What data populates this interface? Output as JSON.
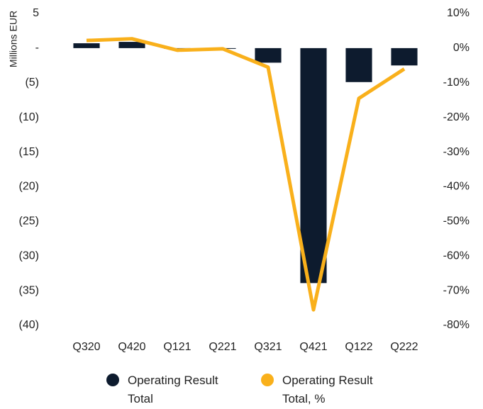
{
  "chart_data": {
    "type": "bar-line",
    "y_label": "Millions EUR",
    "categories": [
      "Q320",
      "Q420",
      "Q121",
      "Q221",
      "Q321",
      "Q421",
      "Q122",
      "Q222"
    ],
    "series": [
      {
        "name": "Operating Result Total",
        "color": "#0d1b2e",
        "type": "bar",
        "values": [
          0.7,
          0.9,
          -0.1,
          -0.1,
          -2.1,
          -33.9,
          -4.9,
          -2.5
        ]
      },
      {
        "name": "Operating Result Total, %",
        "color": "#f9b01b",
        "type": "line",
        "axis": "y2",
        "values": [
          2.2,
          2.7,
          -0.6,
          -0.2,
          -5.5,
          -75.5,
          -14.5,
          -6.0
        ]
      }
    ],
    "ylim": [
      -40,
      5
    ],
    "yticks": [
      5,
      {
        "value": 0,
        "label": "-"
      },
      {
        "value": -5,
        "label": "(5)"
      },
      {
        "value": -10,
        "label": "(10)"
      },
      {
        "value": -15,
        "label": "(15)"
      },
      {
        "value": -20,
        "label": "(20)"
      },
      {
        "value": -25,
        "label": "(25)"
      },
      {
        "value": -30,
        "label": "(30)"
      },
      {
        "value": -35,
        "label": "(35)"
      },
      {
        "value": -40,
        "label": "(40)"
      }
    ],
    "y2lim": [
      -80,
      10
    ],
    "y2ticks": [
      {
        "value": 10,
        "label": "10%"
      },
      {
        "value": 0,
        "label": "0%"
      },
      {
        "value": -10,
        "label": "-10%"
      },
      {
        "value": -20,
        "label": "-20%"
      },
      {
        "value": -30,
        "label": "-30%"
      },
      {
        "value": -40,
        "label": "-40%"
      },
      {
        "value": -50,
        "label": "-50%"
      },
      {
        "value": -60,
        "label": "-60%"
      },
      {
        "value": -70,
        "label": "-70%"
      },
      {
        "value": -80,
        "label": "-80%"
      }
    ],
    "legend": "bottom"
  }
}
